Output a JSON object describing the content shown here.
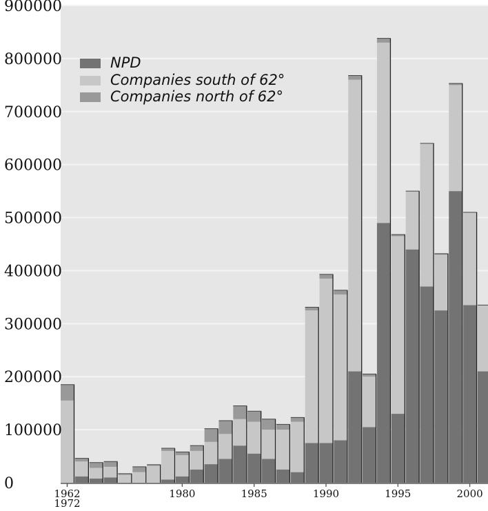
{
  "chart_data": {
    "type": "bar",
    "stacked": true,
    "title": "",
    "xlabel": "",
    "ylabel": "",
    "ylim": [
      0,
      900000
    ],
    "yticks": [
      0,
      100000,
      200000,
      300000,
      400000,
      500000,
      600000,
      700000,
      800000,
      900000
    ],
    "yticklabels": [
      "0",
      "100000",
      "200000",
      "300000",
      "400000",
      "500000",
      "600000",
      "700000",
      "800000",
      "900000"
    ],
    "categories": [
      "1962-1972",
      "1973",
      "1974",
      "1975",
      "1976",
      "1977",
      "1978",
      "1979",
      "1980",
      "1981",
      "1982",
      "1983",
      "1984",
      "1985",
      "1986",
      "1987",
      "1988",
      "1989",
      "1990",
      "1991",
      "1992",
      "1993",
      "1994",
      "1995",
      "1996",
      "1997",
      "1998",
      "1999",
      "2000",
      "2001",
      "2002"
    ],
    "xticklabels": [
      {
        "category": "1962-1972",
        "text": "1962"
      },
      {
        "category": "1962-1972",
        "text": "1972"
      },
      {
        "category": "1980",
        "text": "1980"
      },
      {
        "category": "1985",
        "text": "1985"
      },
      {
        "category": "1990",
        "text": "1990"
      },
      {
        "category": "1995",
        "text": "1995"
      },
      {
        "category": "2000",
        "text": "2000"
      }
    ],
    "legend_position": "top-left",
    "grid": true,
    "series": [
      {
        "name": "NPD",
        "color": "#737373",
        "values": [
          0,
          12000,
          8000,
          10000,
          0,
          0,
          0,
          6000,
          12000,
          25000,
          35000,
          45000,
          70000,
          55000,
          45000,
          25000,
          20000,
          75000,
          75000,
          80000,
          210000,
          105000,
          490000,
          130000,
          440000,
          370000,
          325000,
          550000,
          335000,
          210000,
          0
        ]
      },
      {
        "name": "Companies south of 62°",
        "color": "#c7c7c7",
        "values": [
          155000,
          28000,
          20000,
          20000,
          15000,
          20000,
          32000,
          54000,
          40000,
          35000,
          42000,
          47000,
          50000,
          60000,
          55000,
          75000,
          95000,
          250000,
          310000,
          275000,
          550000,
          95000,
          340000,
          335000,
          110000,
          270000,
          105000,
          200000,
          175000,
          125000,
          0
        ]
      },
      {
        "name": "Companies north of 62°",
        "color": "#999999",
        "values": [
          30000,
          6000,
          10000,
          10000,
          2000,
          10000,
          2000,
          5000,
          6000,
          10000,
          25000,
          25000,
          25000,
          20000,
          20000,
          10000,
          8000,
          6000,
          8000,
          8000,
          8000,
          5000,
          8000,
          3000,
          0,
          0,
          2000,
          3000,
          0,
          0,
          0
        ]
      }
    ]
  }
}
